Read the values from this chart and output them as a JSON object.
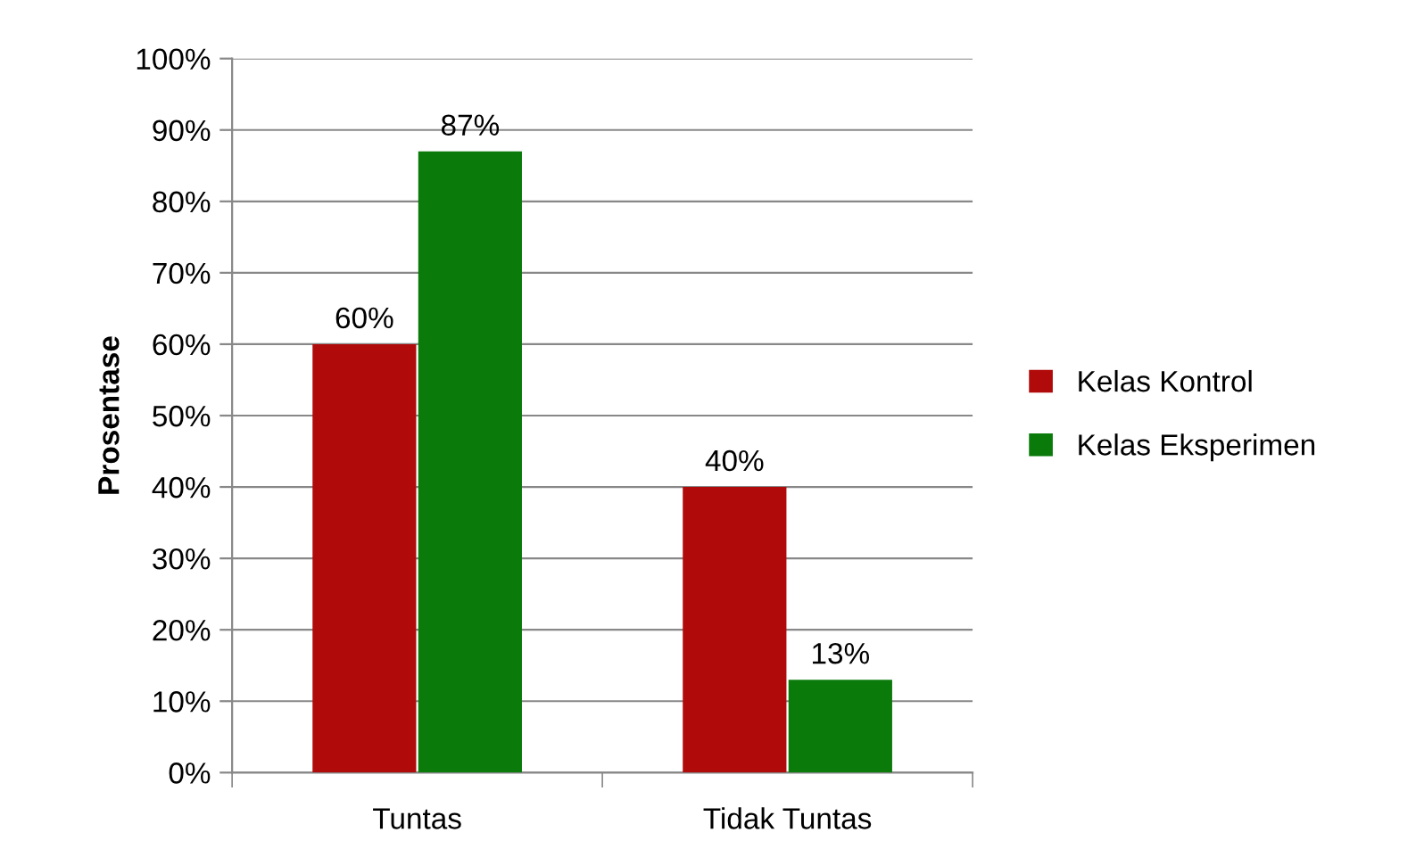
{
  "chart_data": {
    "type": "bar",
    "ylabel": "Prosentase",
    "categories": [
      "Tuntas",
      "Tidak Tuntas"
    ],
    "series": [
      {
        "name": "Kelas Kontrol",
        "color": "#b00a0a",
        "values": [
          60,
          40
        ],
        "value_labels": [
          "60%",
          "40%"
        ]
      },
      {
        "name": "Kelas Eksperimen",
        "color": "#0a7a0a",
        "values": [
          87,
          13
        ],
        "value_labels": [
          "87%",
          "13%"
        ]
      }
    ],
    "ylim": [
      0,
      100
    ],
    "yticks": [
      {
        "value": 0,
        "label": "0%"
      },
      {
        "value": 10,
        "label": "10%"
      },
      {
        "value": 20,
        "label": "20%"
      },
      {
        "value": 30,
        "label": "30%"
      },
      {
        "value": 40,
        "label": "40%"
      },
      {
        "value": 50,
        "label": "50%"
      },
      {
        "value": 60,
        "label": "60%"
      },
      {
        "value": 70,
        "label": "70%"
      },
      {
        "value": 80,
        "label": "80%"
      },
      {
        "value": 90,
        "label": "90%"
      },
      {
        "value": 100,
        "label": "100%"
      }
    ],
    "grid": "y",
    "legend": "right"
  }
}
